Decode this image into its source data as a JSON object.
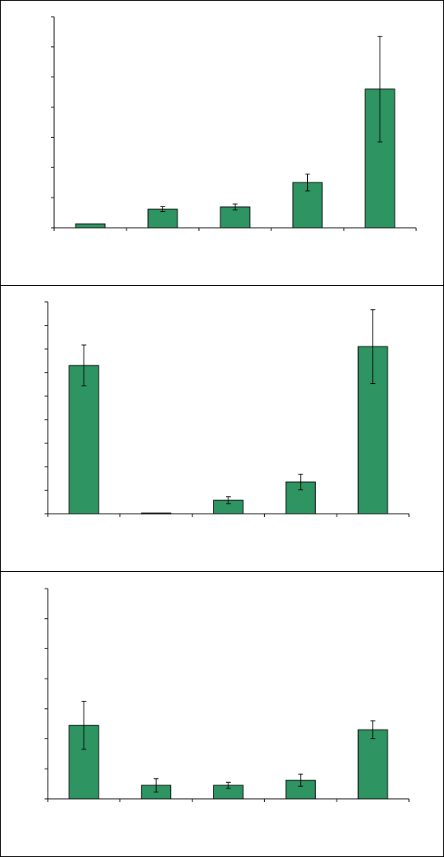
{
  "chart_data": [
    {
      "type": "bar",
      "title": "",
      "xlabel": "",
      "ylabel": "",
      "categories": [
        "",
        "",
        "",
        "",
        ""
      ],
      "ylim": [
        0,
        7
      ],
      "yticks": [
        0,
        1,
        2,
        3,
        4,
        5,
        6,
        7
      ],
      "values": [
        0.13,
        0.62,
        0.69,
        1.5,
        4.6
      ],
      "errors": [
        0.01,
        0.08,
        0.1,
        0.28,
        1.75
      ],
      "bar_color": "#2e9462",
      "grid": false
    },
    {
      "type": "bar",
      "title": "",
      "xlabel": "",
      "ylabel": "",
      "categories": [
        "",
        "",
        "",
        "",
        ""
      ],
      "ylim": [
        0,
        9
      ],
      "yticks": [
        0,
        1,
        2,
        3,
        4,
        5,
        6,
        7,
        8,
        9
      ],
      "values": [
        6.3,
        0.03,
        0.57,
        1.35,
        7.1
      ],
      "errors": [
        0.87,
        0.01,
        0.15,
        0.33,
        1.57
      ],
      "bar_color": "#2e9462",
      "grid": false
    },
    {
      "type": "bar",
      "title": "",
      "xlabel": "",
      "ylabel": "",
      "categories": [
        "",
        "",
        "",
        "",
        ""
      ],
      "ylim": [
        0,
        7
      ],
      "yticks": [
        0,
        1,
        2,
        3,
        4,
        5,
        6,
        7
      ],
      "values": [
        2.45,
        0.45,
        0.45,
        0.62,
        2.3
      ],
      "errors": [
        0.8,
        0.22,
        0.1,
        0.2,
        0.3
      ],
      "bar_color": "#2e9462",
      "grid": false
    }
  ]
}
